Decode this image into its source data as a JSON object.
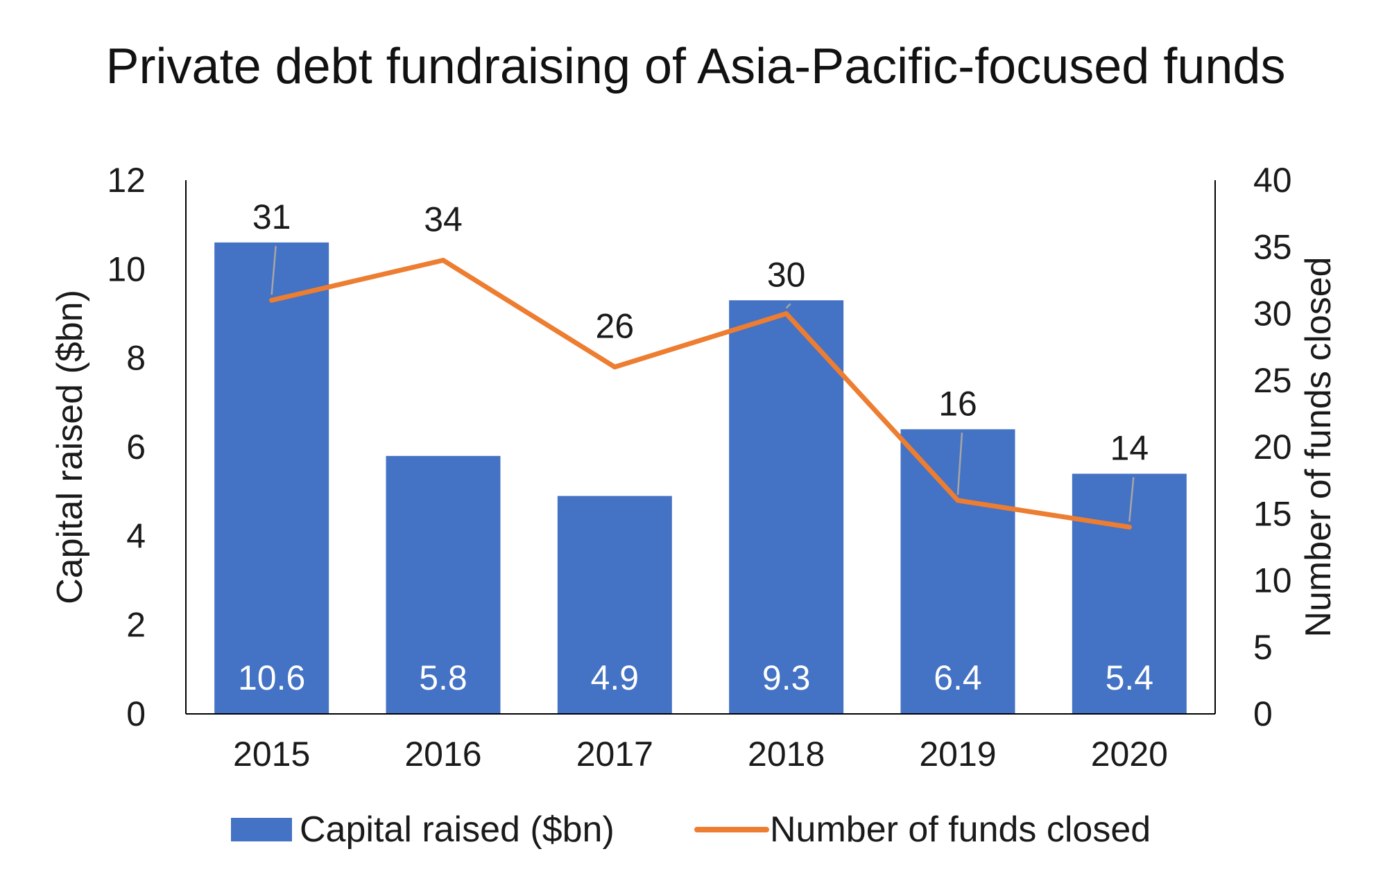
{
  "chart_data": {
    "type": "bar",
    "title": "Private debt fundraising of Asia-Pacific-focused funds",
    "categories": [
      "2015",
      "2016",
      "2017",
      "2018",
      "2019",
      "2020"
    ],
    "series": [
      {
        "name": "Capital raised ($bn)",
        "type": "bar",
        "axis": "left",
        "values": [
          10.6,
          5.8,
          4.9,
          9.3,
          6.4,
          5.4
        ],
        "data_labels": [
          "10.6",
          "5.8",
          "4.9",
          "9.3",
          "6.4",
          "5.4"
        ],
        "color": "#4472c4"
      },
      {
        "name": "Number of funds closed",
        "type": "line",
        "axis": "right",
        "values": [
          31,
          34,
          26,
          30,
          16,
          14
        ],
        "data_labels": [
          "31",
          "34",
          "26",
          "30",
          "16",
          "14"
        ],
        "color": "#ed7d31"
      }
    ],
    "left_axis": {
      "label": "Capital raised ($bn)",
      "range": [
        0,
        12
      ],
      "ticks": [
        "0",
        "2",
        "4",
        "6",
        "8",
        "10",
        "12"
      ]
    },
    "right_axis": {
      "label": "Number of funds closed",
      "range": [
        0,
        40
      ],
      "ticks": [
        "0",
        "5",
        "10",
        "15",
        "20",
        "25",
        "30",
        "35",
        "40"
      ]
    },
    "grid": false,
    "legend_position": "bottom",
    "leader_line_color": "#a6a6a6"
  }
}
